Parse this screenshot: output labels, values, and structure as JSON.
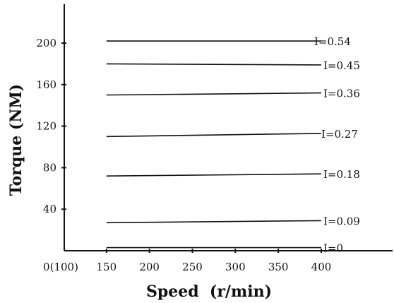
{
  "chart_data": {
    "type": "line",
    "xlabel": "Speed  (r/min)",
    "ylabel": "Torque (NM)",
    "x_ticks": [
      {
        "value": 100,
        "label": "0(100)"
      },
      {
        "value": 150,
        "label": "150"
      },
      {
        "value": 200,
        "label": "200"
      },
      {
        "value": 250,
        "label": "250"
      },
      {
        "value": 300,
        "label": "300"
      },
      {
        "value": 350,
        "label": "350"
      },
      {
        "value": 400,
        "label": "400"
      }
    ],
    "y_ticks": [
      {
        "value": 40,
        "label": "40"
      },
      {
        "value": 80,
        "label": "80"
      },
      {
        "value": 120,
        "label": "120"
      },
      {
        "value": 160,
        "label": "160"
      },
      {
        "value": 200,
        "label": "200"
      }
    ],
    "xlim": [
      100,
      400
    ],
    "ylim": [
      0,
      220
    ],
    "grid": false,
    "series": [
      {
        "name": "I=0.54",
        "x": [
          150,
          400
        ],
        "y": [
          202,
          202
        ]
      },
      {
        "name": "I=0.45",
        "x": [
          150,
          400
        ],
        "y": [
          180,
          179
        ]
      },
      {
        "name": "I=0.36",
        "x": [
          150,
          400
        ],
        "y": [
          150,
          152
        ]
      },
      {
        "name": "I=0.27",
        "x": [
          150,
          400
        ],
        "y": [
          110,
          113
        ]
      },
      {
        "name": "I=0.18",
        "x": [
          150,
          400
        ],
        "y": [
          72,
          74
        ]
      },
      {
        "name": "I=0.09",
        "x": [
          150,
          400
        ],
        "y": [
          27,
          29
        ]
      },
      {
        "name": "I=0",
        "x": [
          150,
          400
        ],
        "y": [
          3,
          3
        ]
      }
    ]
  }
}
